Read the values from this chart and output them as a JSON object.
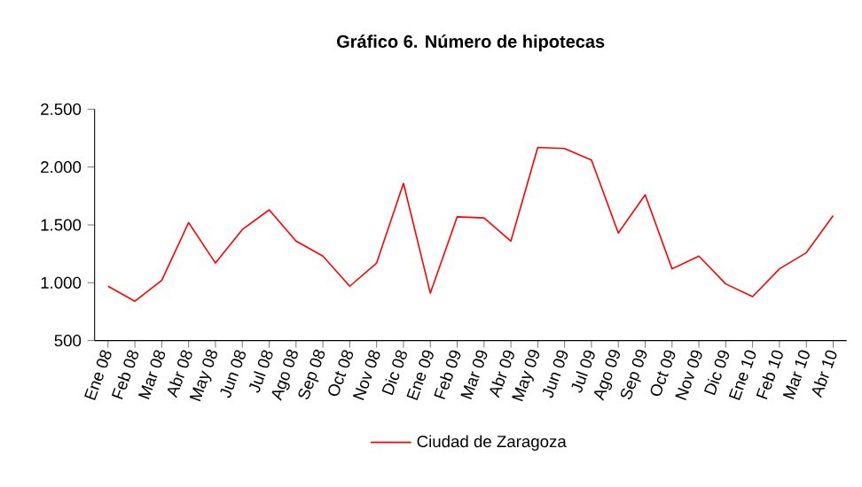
{
  "chart_data": {
    "type": "line",
    "title": "Gráfico 6. Número de hipotecas",
    "categories": [
      "Ene 08",
      "Feb 08",
      "Mar 08",
      "Abr 08",
      "May 08",
      "Jun 08",
      "Jul 08",
      "Ago 08",
      "Sep 08",
      "Oct 08",
      "Nov 08",
      "Dic 08",
      "Ene 09",
      "Feb 09",
      "Mar 09",
      "Abr 09",
      "May 09",
      "Jun 09",
      "Jul 09",
      "Ago 09",
      "Sep 09",
      "Oct 09",
      "Nov 09",
      "Dic 09",
      "Ene 10",
      "Feb 10",
      "Mar 10",
      "Abr 10"
    ],
    "series": [
      {
        "name": "Ciudad de Zaragoza",
        "color": "#ff0000",
        "values": [
          970,
          840,
          1020,
          1520,
          1170,
          1460,
          1630,
          1360,
          1230,
          970,
          1170,
          1860,
          910,
          1570,
          1560,
          1360,
          2170,
          2160,
          2060,
          1430,
          1760,
          1120,
          1230,
          990,
          880,
          1120,
          1260,
          1580
        ]
      }
    ],
    "ylim": [
      500,
      2500
    ],
    "yticks": [
      {
        "value": 500,
        "label": "500"
      },
      {
        "value": 1000,
        "label": "1.000"
      },
      {
        "value": 1500,
        "label": "1.500"
      },
      {
        "value": 2000,
        "label": "2.000"
      },
      {
        "value": 2500,
        "label": "2.500"
      }
    ],
    "grid": false,
    "legend": "bottom",
    "marker": "none",
    "line_style": "solid"
  }
}
